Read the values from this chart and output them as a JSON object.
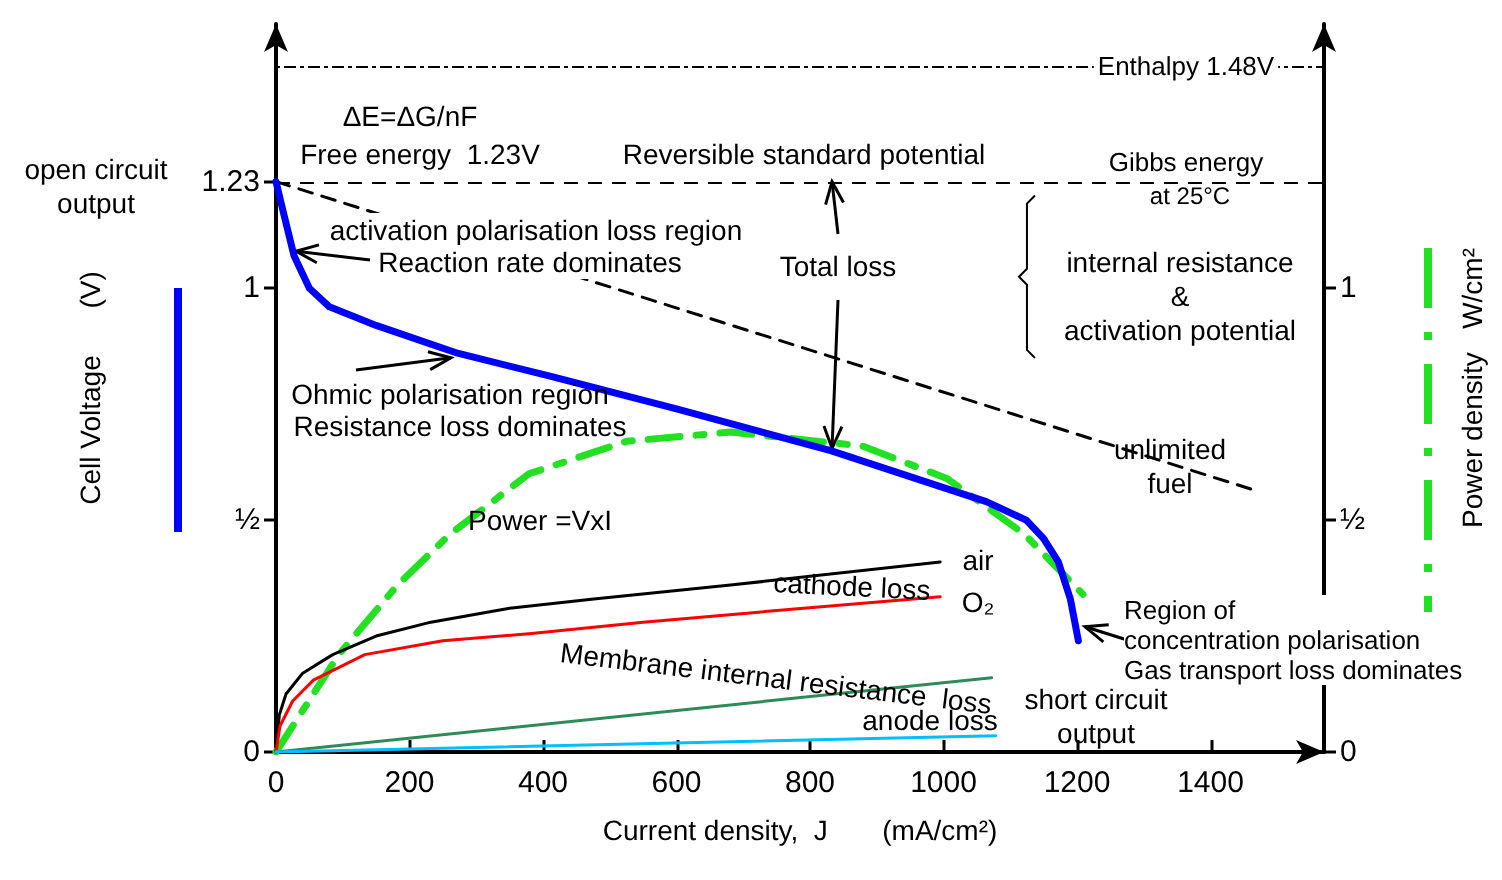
{
  "chart_data": {
    "type": "line",
    "xlabel": "Current density,  J       (mA/cm²)",
    "ylabel": "Cell Voltage      (V)",
    "y2label": "Power density   W/cm²",
    "xlim": [
      0,
      1570
    ],
    "xticks": [
      0,
      200,
      400,
      600,
      800,
      1000,
      1200,
      1400
    ],
    "ylim": [
      0,
      1.57
    ],
    "yticks": [
      0,
      {
        "value": 0.5,
        "label": "½"
      },
      1,
      1.23
    ],
    "y2lim": [
      0,
      1.57
    ],
    "y2ticks": [
      0,
      {
        "value": 0.5,
        "label": "½"
      },
      1
    ],
    "grid": false,
    "marker": "none",
    "series": [
      {
        "color": "#0000ff",
        "x": [
          0,
          10,
          27,
          50,
          80,
          150,
          272,
          412,
          600,
          831,
          1000,
          1064,
          1124,
          1150,
          1172,
          1190,
          1202
        ],
        "values": [
          1.23,
          1.17,
          1.07,
          1.0,
          0.96,
          0.92,
          0.86,
          0.81,
          0.74,
          0.65,
          0.57,
          0.54,
          0.5,
          0.46,
          0.41,
          0.33,
          0.24
        ]
      },
      {
        "color": "#22e022",
        "axis": "y2",
        "line_style": "dashed",
        "x": [
          0,
          94,
          182,
          261,
          379,
          525,
          681,
          878,
          1005,
          1121,
          1209
        ],
        "values": [
          0,
          0.21,
          0.36,
          0.47,
          0.6,
          0.67,
          0.69,
          0.66,
          0.59,
          0.47,
          0.34
        ]
      },
      {
        "color": "#000000",
        "x": [
          0,
          5,
          15,
          40,
          85,
          150,
          232,
          350,
          476,
          681,
          995
        ],
        "values": [
          0,
          0.08,
          0.125,
          0.17,
          0.21,
          0.25,
          0.28,
          0.31,
          0.33,
          0.36,
          0.41
        ]
      },
      {
        "color": "#ff0000",
        "x": [
          0,
          6,
          25,
          56,
          133,
          250,
          379,
          550,
          710,
          995
        ],
        "values": [
          0,
          0.056,
          0.11,
          0.155,
          0.21,
          0.24,
          0.255,
          0.28,
          0.3,
          0.335
        ]
      },
      {
        "color": "#2e8b57",
        "x": [
          0,
          1072
        ],
        "values": [
          0,
          0.16
        ]
      },
      {
        "color": "#00bfff",
        "x": [
          0,
          1078
        ],
        "values": [
          0,
          0.035
        ]
      },
      {
        "color": "#000000",
        "line_style": "dashed",
        "x": [
          0,
          1465
        ],
        "values": [
          1.23,
          0.565
        ]
      }
    ],
    "ref_lines": [
      {
        "axis": "y",
        "value": 1.48,
        "label": "Enthalpy 1.48V",
        "line_style": "dotted",
        "color": "#000000"
      },
      {
        "axis": "y",
        "value": 1.23,
        "label": "Gibbs energy",
        "line_style": "dashed",
        "color": "#000000"
      }
    ],
    "annotations": [
      "open circuit\noutput",
      "ΔE=ΔG/nF",
      "Free energy  1.23V",
      "Reversible standard potential",
      "at 25°C",
      "activation polarisation loss region",
      {
        "text": "Reaction rate dominates",
        "x": 30,
        "y": 1.08
      },
      {
        "text": "Total loss",
        "x": 833,
        "y": 0.655
      },
      "internal resistance\n&\nactivation potential",
      {
        "text": "Ohmic polarisation region",
        "x": 262,
        "y": 0.85
      },
      "Resistance loss dominates",
      "unlimited\nfuel",
      "Power =VxI",
      "air",
      "cathode loss",
      "O₂",
      "Membrane internal resistance  loss",
      "anode loss",
      "short circuit\noutput",
      {
        "text": "Region of\nconcentration polarisation\nGas transport loss dominates",
        "x": 1212,
        "y": 0.27
      }
    ]
  }
}
